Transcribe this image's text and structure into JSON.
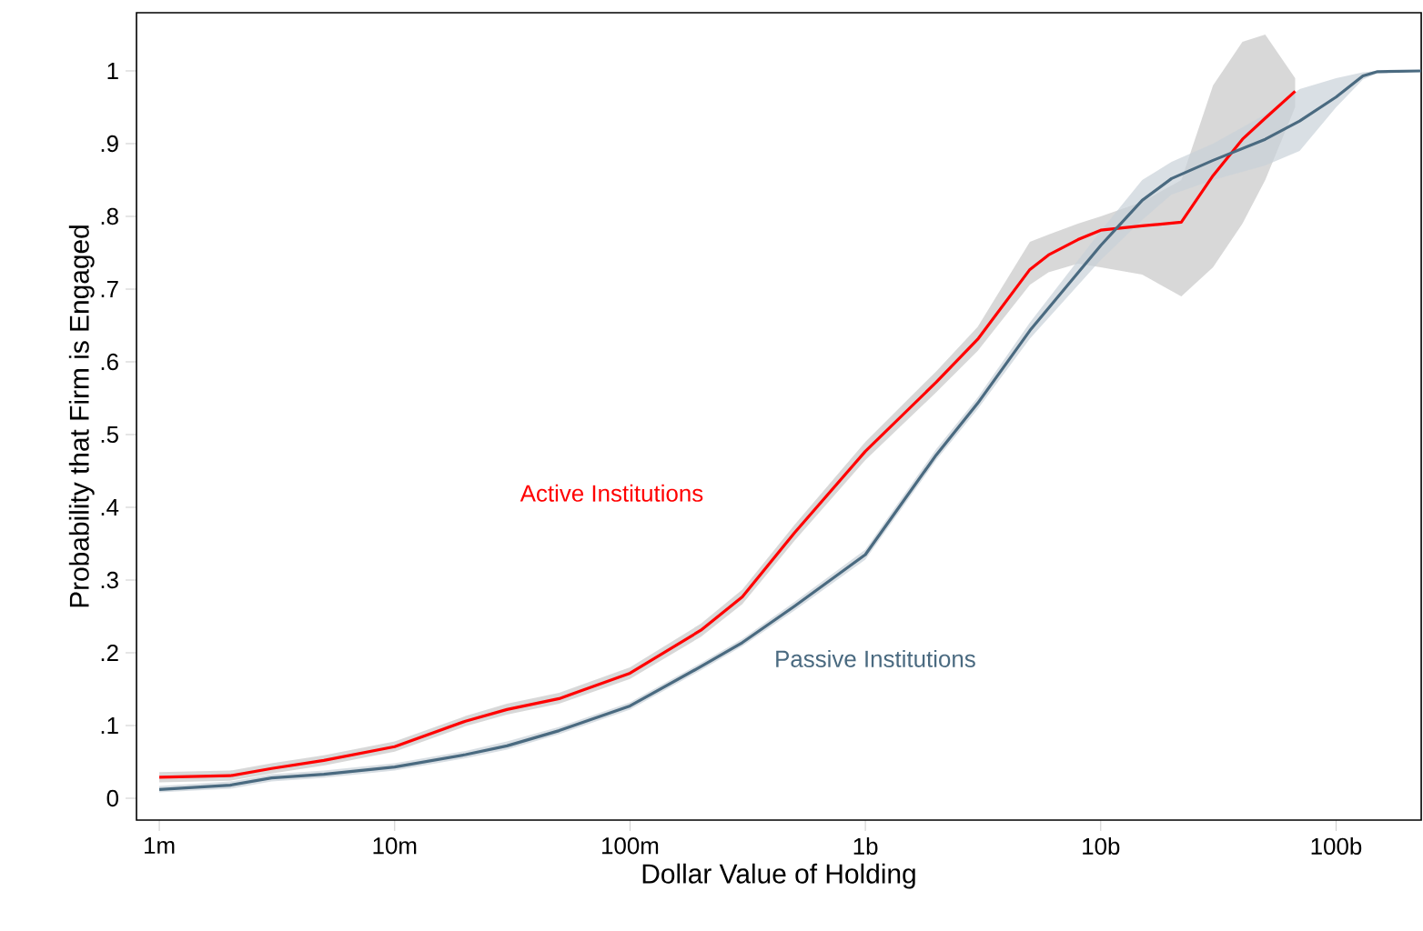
{
  "chart_data": {
    "type": "line",
    "xlabel": "Dollar Value of Holding",
    "ylabel": "Probability that Firm is Engaged",
    "log": "x",
    "xlim": [
      800000.0,
      230000000000.0
    ],
    "ylim": [
      -0.03,
      1.08
    ],
    "xticks": [
      {
        "value": 1000000.0,
        "label": "1m"
      },
      {
        "value": 10000000.0,
        "label": "10m"
      },
      {
        "value": 100000000.0,
        "label": "100m"
      },
      {
        "value": 1000000000.0,
        "label": "1b"
      },
      {
        "value": 10000000000.0,
        "label": "10b"
      },
      {
        "value": 100000000000.0,
        "label": "100b"
      }
    ],
    "yticks": [
      0,
      {
        "value": 0.1,
        "label": ".1"
      },
      {
        "value": 0.2,
        "label": ".2"
      },
      {
        "value": 0.3,
        "label": ".3"
      },
      {
        "value": 0.4,
        "label": ".4"
      },
      {
        "value": 0.5,
        "label": ".5"
      },
      {
        "value": 0.6,
        "label": ".6"
      },
      {
        "value": 0.7,
        "label": ".7"
      },
      {
        "value": 0.8,
        "label": ".8"
      },
      {
        "value": 0.9,
        "label": ".9"
      },
      1
    ],
    "series": [
      {
        "name": "Active Institutions",
        "color": "#ff0000",
        "x": [
          1000000.0,
          2000000.0,
          3000000.0,
          5000000.0,
          10000000.0,
          20000000.0,
          30000000.0,
          50000000.0,
          100000000.0,
          200000000.0,
          300000000.0,
          500000000.0,
          1000000000.0,
          2000000000.0,
          3000000000.0,
          5000000000.0,
          6000000000.0,
          8000000000.0,
          10000000000.0,
          15000000000.0,
          22000000000.0,
          30000000000.0,
          40000000000.0,
          50000000000.0,
          67000000000.0
        ],
        "values": [
          0.029,
          0.031,
          0.041,
          0.052,
          0.071,
          0.106,
          0.122,
          0.137,
          0.172,
          0.231,
          0.277,
          0.365,
          0.477,
          0.572,
          0.631,
          0.727,
          0.747,
          0.768,
          0.781,
          0.787,
          0.792,
          0.856,
          0.906,
          0.935,
          0.972
        ],
        "lower": [
          0.022,
          0.024,
          0.034,
          0.045,
          0.064,
          0.099,
          0.115,
          0.13,
          0.164,
          0.222,
          0.267,
          0.354,
          0.465,
          0.558,
          0.615,
          0.706,
          0.723,
          0.735,
          0.73,
          0.72,
          0.69,
          0.73,
          0.79,
          0.85,
          0.95
        ],
        "upper": [
          0.036,
          0.038,
          0.048,
          0.059,
          0.078,
          0.113,
          0.13,
          0.145,
          0.18,
          0.24,
          0.287,
          0.376,
          0.49,
          0.587,
          0.648,
          0.765,
          0.775,
          0.79,
          0.8,
          0.82,
          0.85,
          0.98,
          1.04,
          1.05,
          0.99
        ]
      },
      {
        "name": "Passive Institutions",
        "color": "#4a6a80",
        "x": [
          1000000.0,
          2000000.0,
          3000000.0,
          5000000.0,
          10000000.0,
          20000000.0,
          30000000.0,
          50000000.0,
          100000000.0,
          200000000.0,
          300000000.0,
          500000000.0,
          1000000000.0,
          2000000000.0,
          3000000000.0,
          5000000000.0,
          10000000000.0,
          15000000000.0,
          20000000000.0,
          30000000000.0,
          50000000000.0,
          70000000000.0,
          100000000000.0,
          130000000000.0,
          150000000000.0,
          230000000000.0
        ],
        "values": [
          0.012,
          0.018,
          0.028,
          0.033,
          0.043,
          0.06,
          0.072,
          0.093,
          0.127,
          0.181,
          0.214,
          0.264,
          0.335,
          0.472,
          0.543,
          0.643,
          0.76,
          0.822,
          0.852,
          0.877,
          0.906,
          0.931,
          0.964,
          0.993,
          0.999,
          1.0
        ],
        "lower": [
          0.008,
          0.013,
          0.023,
          0.028,
          0.038,
          0.055,
          0.067,
          0.088,
          0.122,
          0.176,
          0.209,
          0.258,
          0.328,
          0.465,
          0.535,
          0.632,
          0.74,
          0.795,
          0.83,
          0.85,
          0.87,
          0.89,
          0.95,
          0.988,
          0.997,
          0.999
        ],
        "upper": [
          0.017,
          0.023,
          0.033,
          0.038,
          0.048,
          0.065,
          0.078,
          0.098,
          0.132,
          0.186,
          0.219,
          0.27,
          0.342,
          0.48,
          0.551,
          0.654,
          0.78,
          0.85,
          0.875,
          0.9,
          0.94,
          0.975,
          0.99,
          0.998,
          1.0,
          1.0
        ]
      }
    ]
  }
}
